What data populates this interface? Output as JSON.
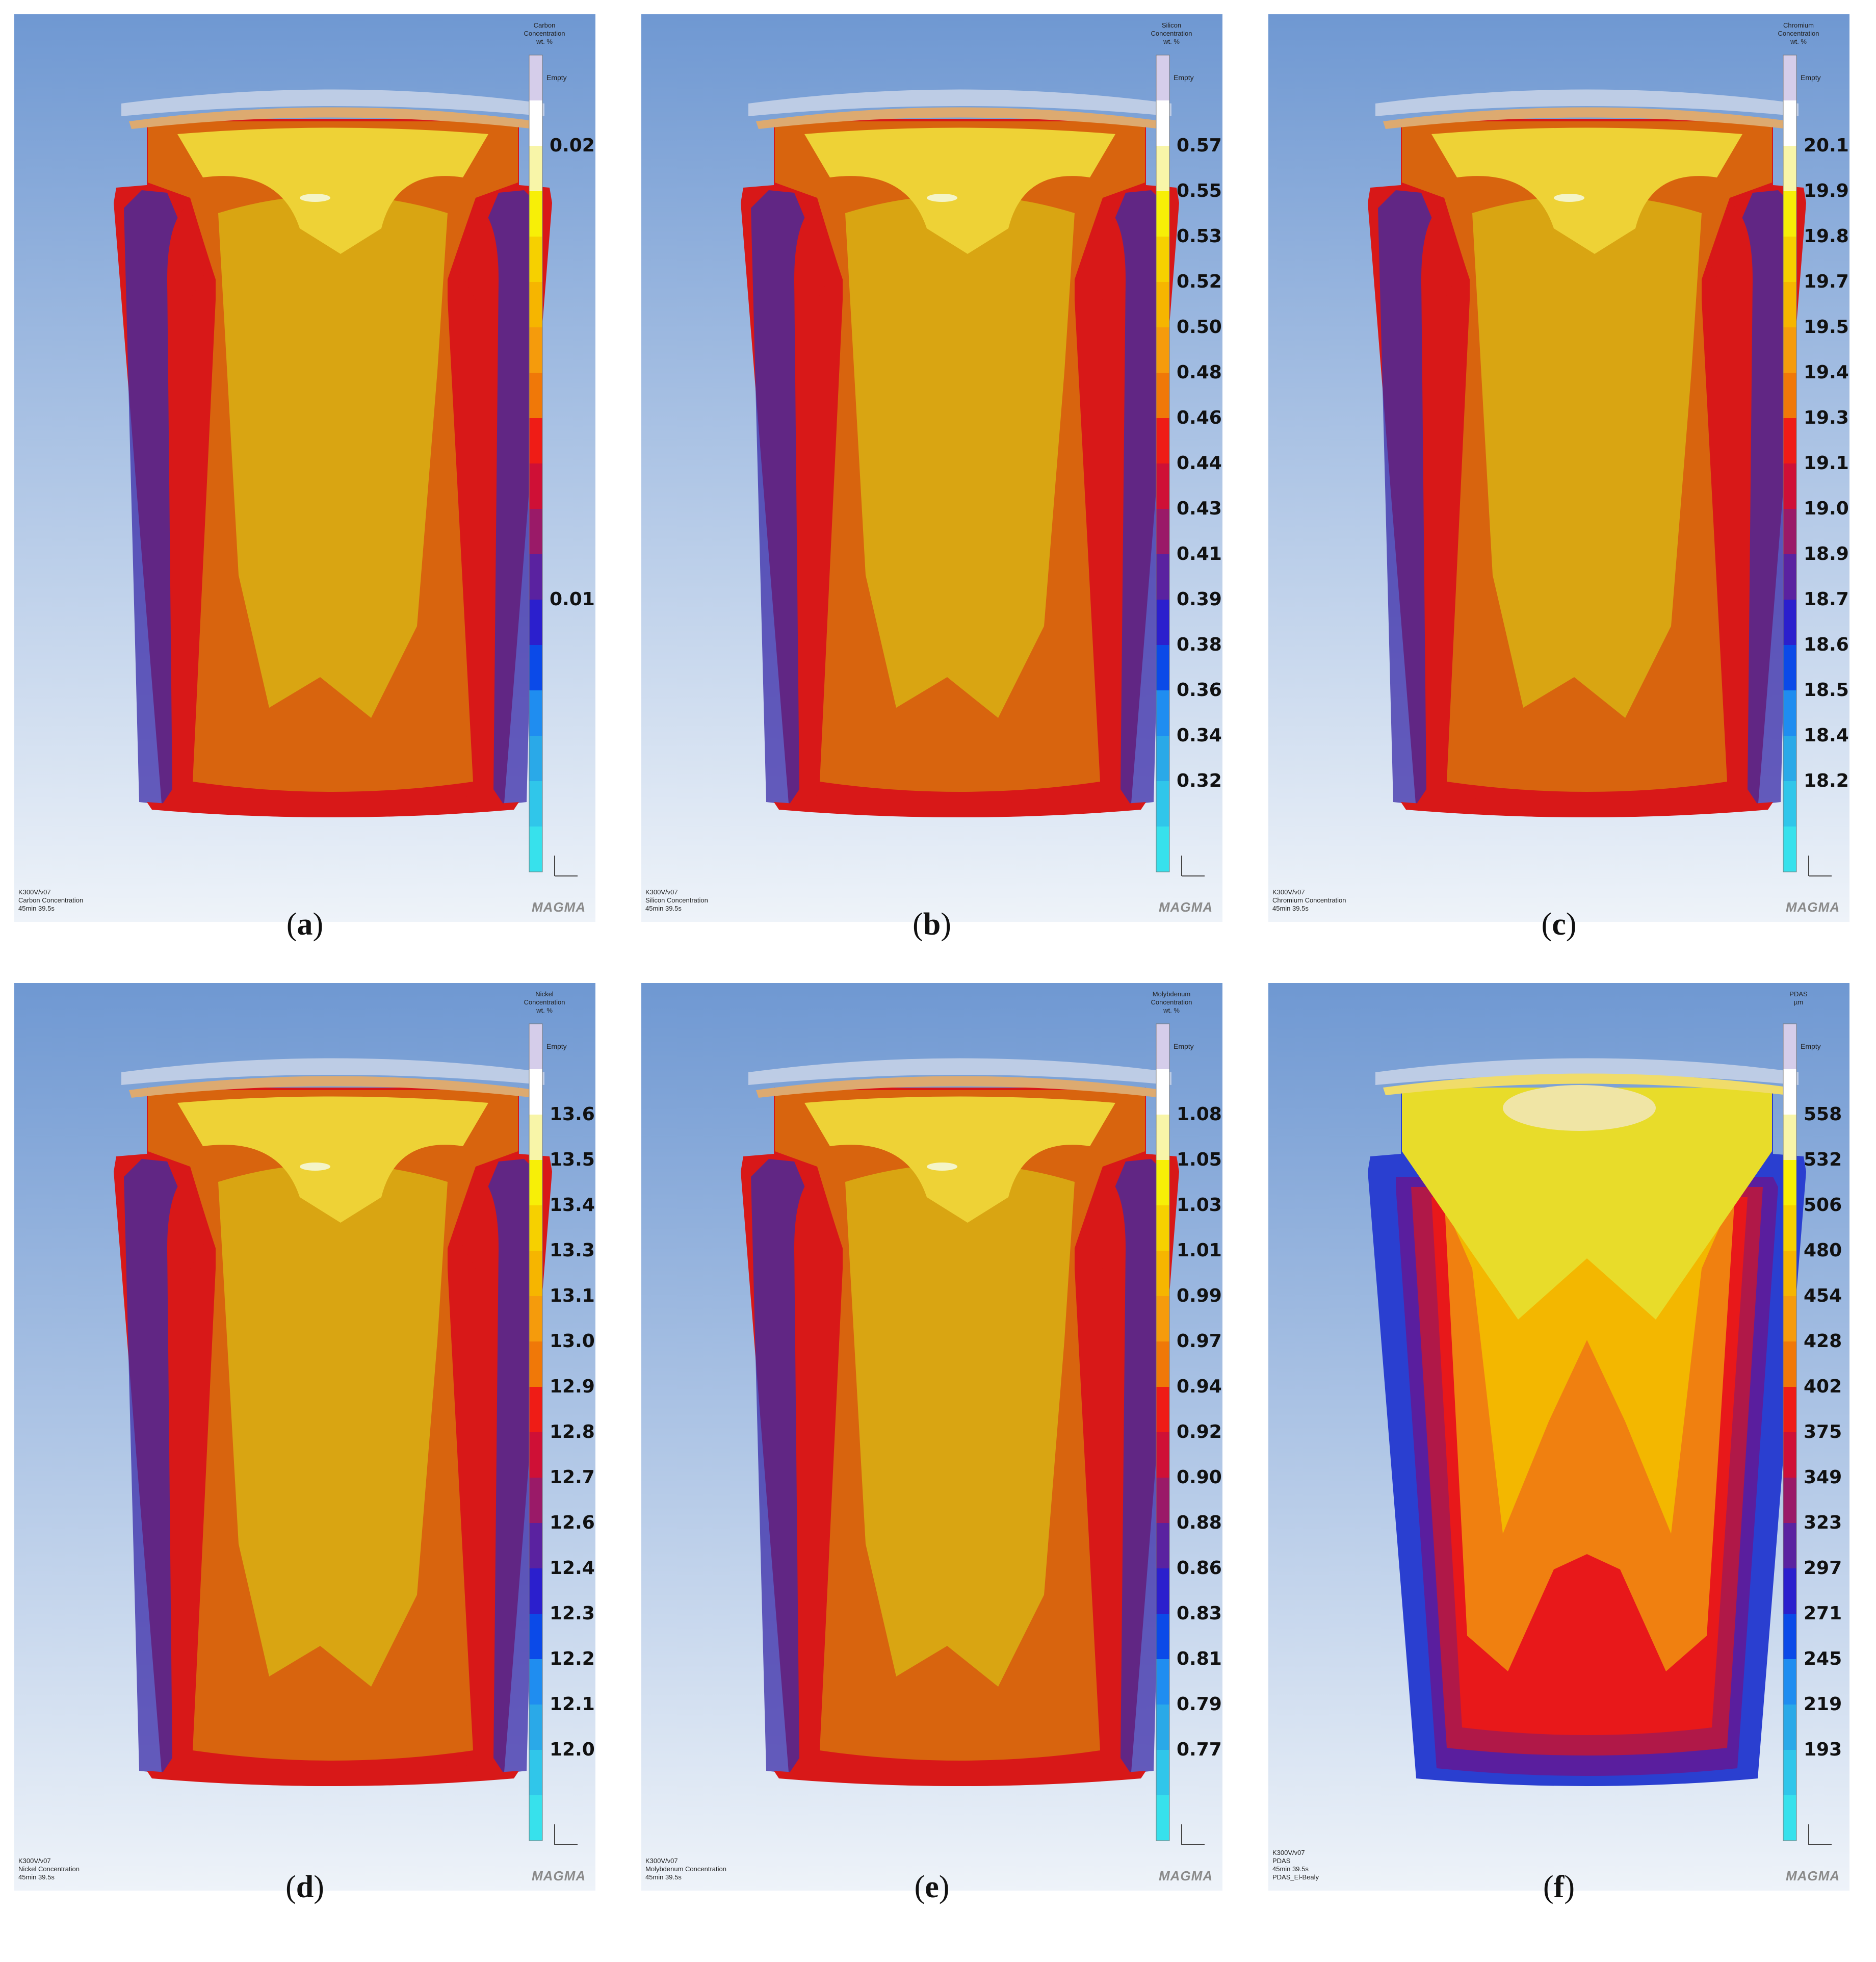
{
  "colors": {
    "bg_top": "#6f98d2",
    "bg_bottom": "#eef3f9",
    "body_fill": "#d8640e",
    "core_fill": "#d9a512",
    "top_fill": "#eed236",
    "cap_fill": "#ddaa70",
    "edge_red": "#d81818",
    "edge_blue": "#3a2ba8",
    "bar_palette": [
      "#37e1ec",
      "#30c6ea",
      "#2aa9e8",
      "#1f8df0",
      "#0b4ae8",
      "#2b1fcd",
      "#5a22a0",
      "#9a1a68",
      "#cf1036",
      "#ef1c16",
      "#f07808",
      "#f59b0c",
      "#f6b500",
      "#f6d000",
      "#f7ef07",
      "#f8f5a8",
      "#ffffff",
      "#d5cdea"
    ]
  },
  "panels": [
    {
      "caption_letter": "a",
      "legend_title": [
        "Carbon",
        "Concentration",
        "wt. %"
      ],
      "empty_label": "Empty",
      "ticks": [
        "0.02",
        "",
        "",
        "",
        "",
        "",
        "",
        "",
        "",
        "",
        "0.01",
        "",
        "",
        "",
        "",
        ""
      ],
      "info": [
        "K300V/v07",
        "Carbon Concentration",
        "45min 39.5s"
      ],
      "logo": "MAGMA",
      "variant": "chem"
    },
    {
      "caption_letter": "b",
      "legend_title": [
        "Silicon",
        "Concentration",
        "wt. %"
      ],
      "empty_label": "Empty",
      "ticks": [
        "0.57",
        "0.55",
        "0.53",
        "0.52",
        "0.50",
        "0.48",
        "0.46",
        "0.44",
        "0.43",
        "0.41",
        "0.39",
        "0.38",
        "0.36",
        "0.34",
        "0.32",
        ""
      ],
      "info": [
        "K300V/v07",
        "Silicon Concentration",
        "45min 39.5s"
      ],
      "logo": "MAGMA",
      "variant": "chem"
    },
    {
      "caption_letter": "c",
      "legend_title": [
        "Chromium",
        "Concentration",
        "wt. %"
      ],
      "empty_label": "Empty",
      "ticks": [
        "20.1",
        "19.9",
        "19.8",
        "19.7",
        "19.5",
        "19.4",
        "19.3",
        "19.1",
        "19.0",
        "18.9",
        "18.7",
        "18.6",
        "18.5",
        "18.4",
        "18.2",
        ""
      ],
      "info": [
        "K300V/v07",
        "Chromium Concentration",
        "45min 39.5s"
      ],
      "logo": "MAGMA",
      "variant": "chem"
    },
    {
      "caption_letter": "d",
      "legend_title": [
        "Nickel",
        "Concentration",
        "wt. %"
      ],
      "empty_label": "Empty",
      "ticks": [
        "13.6",
        "13.5",
        "13.4",
        "13.3",
        "13.1",
        "13.0",
        "12.9",
        "12.8",
        "12.7",
        "12.6",
        "12.4",
        "12.3",
        "12.2",
        "12.1",
        "12.0",
        ""
      ],
      "info": [
        "K300V/v07",
        "Nickel Concentration",
        "45min 39.5s"
      ],
      "logo": "MAGMA",
      "variant": "chem"
    },
    {
      "caption_letter": "e",
      "legend_title": [
        "Molybdenum",
        "Concentration",
        "wt. %"
      ],
      "empty_label": "Empty",
      "ticks": [
        "1.08",
        "1.05",
        "1.03",
        "1.01",
        "0.99",
        "0.97",
        "0.94",
        "0.92",
        "0.90",
        "0.88",
        "0.86",
        "0.83",
        "0.81",
        "0.79",
        "0.77",
        ""
      ],
      "info": [
        "K300V/v07",
        "Molybdenum Concentration",
        "45min 39.5s"
      ],
      "logo": "MAGMA",
      "variant": "chem"
    },
    {
      "caption_letter": "f",
      "legend_title": [
        "PDAS",
        "µm"
      ],
      "empty_label": "Empty",
      "ticks": [
        "558",
        "532",
        "506",
        "480",
        "454",
        "428",
        "402",
        "375",
        "349",
        "323",
        "297",
        "271",
        "245",
        "219",
        "193",
        ""
      ],
      "info": [
        "K300V/v07",
        "PDAS",
        "45min 39.5s",
        "PDAS_El-Bealy"
      ],
      "logo": "MAGMA",
      "variant": "pdas"
    }
  ]
}
